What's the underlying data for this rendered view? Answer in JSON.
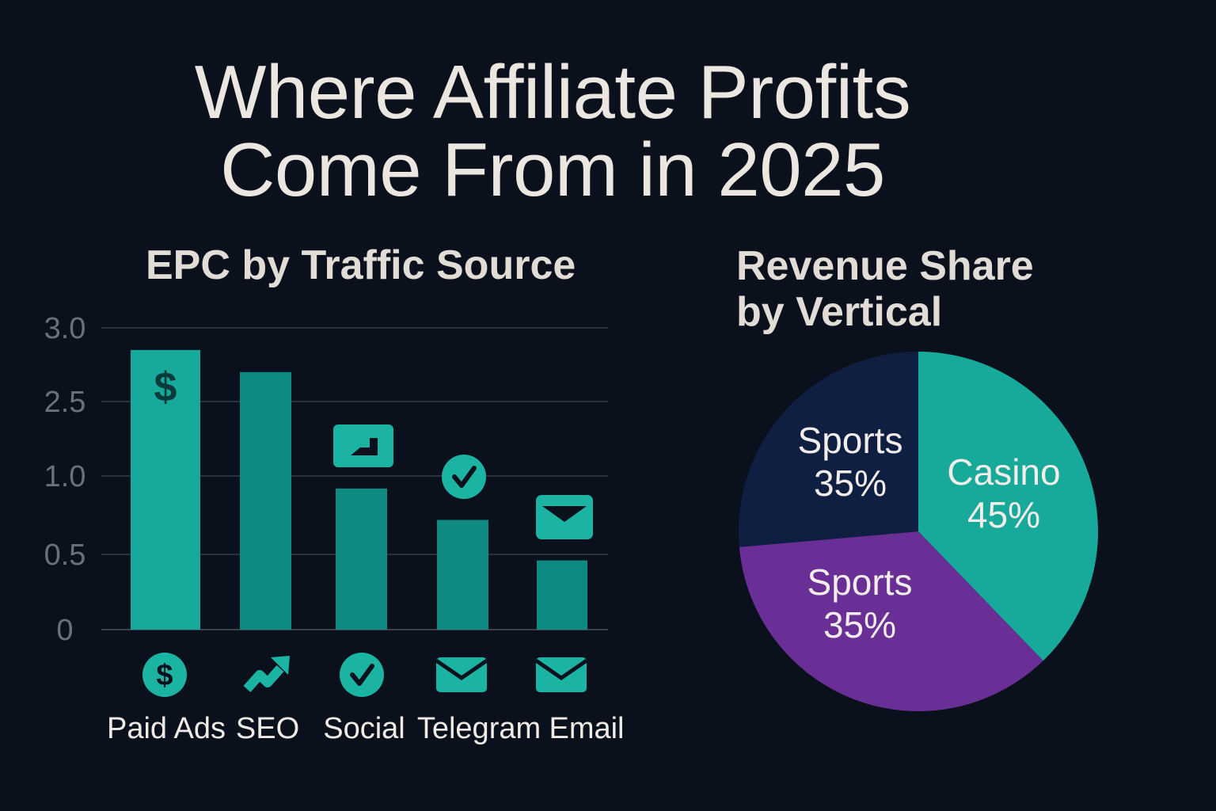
{
  "page": {
    "title_line1": "Where Affiliate Profits",
    "title_line2": "Come From in 2025",
    "background": "#0b111c"
  },
  "chart_data": [
    {
      "type": "bar",
      "title": "EPC by Traffic Source",
      "categories": [
        "Paid Ads",
        "SEO",
        "Social",
        "Telegram",
        "Email"
      ],
      "values": [
        2.85,
        2.7,
        0.92,
        0.72,
        0.46
      ],
      "y_ticks": [
        "0",
        "0.5",
        "1.0",
        "2.5",
        "3.0"
      ],
      "category_icons": [
        "dollar-icon",
        "trend-up-icon",
        "checkmark-icon",
        "envelope-icon",
        "envelope-icon"
      ],
      "bar_top_icons": [
        "dollar-icon",
        null,
        "chat-card-icon",
        "checkmark-icon",
        "envelope-icon"
      ],
      "grid": true,
      "colors": {
        "primary": "#17a99a",
        "secondary": "#0e8a80",
        "icon": "#1bb3a2"
      }
    },
    {
      "type": "pie",
      "title_line1": "Revenue Share",
      "title_line2": "by Vertical",
      "slices": [
        {
          "label": "Casino",
          "value": 45,
          "value_label": "45%",
          "color": "#17a99a"
        },
        {
          "label": "Sports",
          "value": 35,
          "value_label": "35%",
          "color": "#6a2f96"
        },
        {
          "label": "Sports",
          "value": 35,
          "value_label": "35%",
          "color": "#0e1f42"
        }
      ]
    }
  ]
}
